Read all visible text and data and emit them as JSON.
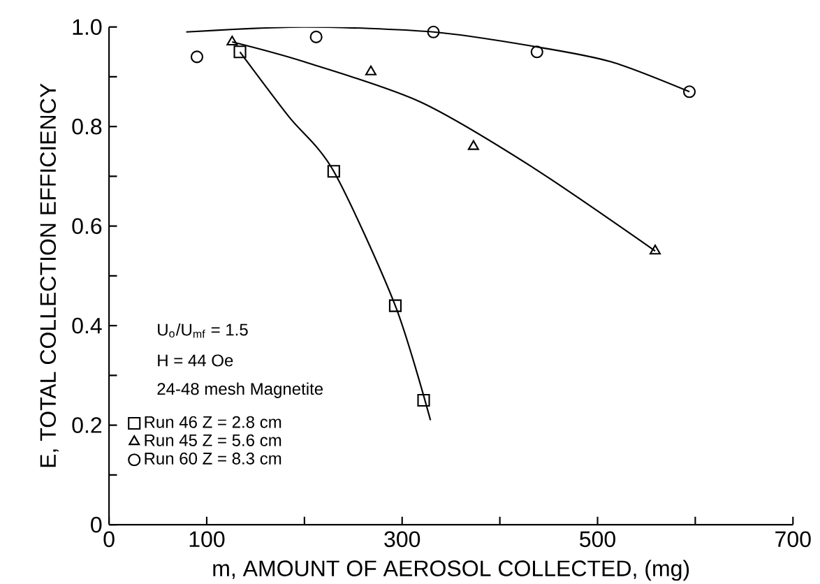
{
  "chart_data": {
    "type": "scatter",
    "xlabel": "m, AMOUNT OF AEROSOL COLLECTED, (mg)",
    "ylabel": "E, TOTAL COLLECTION EFFICIENCY",
    "xlim": [
      0,
      700
    ],
    "ylim": [
      0,
      1
    ],
    "xticks": [
      0,
      100,
      {
        "value": 200,
        "label": null
      },
      300,
      {
        "value": 400,
        "label": null
      },
      500,
      {
        "value": 600,
        "label": null
      },
      700
    ],
    "yticks": [
      0,
      {
        "value": 0.1,
        "label": null
      },
      0.2,
      {
        "value": 0.3,
        "label": null
      },
      0.4,
      {
        "value": 0.5,
        "label": null
      },
      0.6,
      {
        "value": 0.7,
        "label": null
      },
      0.8,
      {
        "value": 0.9,
        "label": null
      },
      {
        "value": 1,
        "label": "1.0"
      }
    ],
    "legend": "bottom left",
    "annotations": [
      "U$_{o}$/U$_{mf}$ = 1.5",
      "H = 44 Oe",
      "24-48 mesh Magnetite"
    ],
    "series": [
      {
        "name": "Run 46   Z = 2.8 cm",
        "marker": "square",
        "color": "#000000",
        "x": [
          134,
          230,
          293,
          322
        ],
        "values": [
          0.95,
          0.71,
          0.44,
          0.25
        ]
      },
      {
        "name": "Run 45   Z = 5.6 cm",
        "marker": "triangle",
        "color": "#000000",
        "x": [
          126,
          268,
          373,
          559
        ],
        "values": [
          0.97,
          0.91,
          0.76,
          0.55
        ]
      },
      {
        "name": "Run 60   Z = 8.3 cm",
        "marker": "circle",
        "color": "#000000",
        "x": [
          90,
          212,
          332,
          438,
          594
        ],
        "values": [
          0.94,
          0.98,
          0.99,
          0.95,
          0.87
        ]
      },
      {
        "type": "line",
        "color": "#000000",
        "x": [
          134,
          184,
          230,
          293,
          329
        ],
        "values": [
          0.95,
          0.82,
          0.71,
          0.44,
          0.21
        ]
      },
      {
        "type": "line",
        "color": "#000000",
        "x": [
          126,
          200,
          318,
          432,
          559
        ],
        "values": [
          0.97,
          0.93,
          0.85,
          0.72,
          0.55
        ]
      },
      {
        "type": "line",
        "color": "#000000",
        "x": [
          79,
          200,
          332,
          438,
          514,
          594
        ],
        "values": [
          0.99,
          1.0,
          0.99,
          0.96,
          0.93,
          0.87
        ]
      }
    ]
  }
}
